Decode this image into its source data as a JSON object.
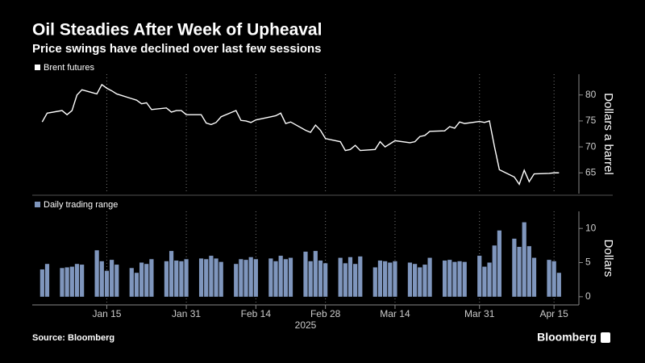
{
  "title": "Oil Steadies After Week of Upheaval",
  "subtitle": "Price swings have declined over last few sessions",
  "source": "Source: Bloomberg",
  "brand": "Bloomberg",
  "chart_data": [
    {
      "type": "line",
      "series": [
        {
          "name": "Brent futures",
          "color": "#ffffff",
          "values": [
            74.8,
            76.5,
            77,
            76.2,
            77,
            80,
            81,
            80.2,
            82,
            81.3,
            80.8,
            80.2,
            79.3,
            79,
            78.3,
            78.5,
            77.2,
            77.5,
            76.7,
            77,
            77,
            76.2,
            76.2,
            74.6,
            74.3,
            74.7,
            75.8,
            77,
            75.1,
            75,
            74.7,
            75.2,
            75.8,
            76,
            76.5,
            74.5,
            74.8,
            73.2,
            72.8,
            74.2,
            73.2,
            71.6,
            71,
            69.3,
            69.5,
            70.3,
            69.3,
            69.5,
            71,
            70,
            70.6,
            71.2,
            70.8,
            71,
            72,
            72.2,
            73,
            73.1,
            73.9,
            73.6,
            74.8,
            74.5,
            74.9,
            74.7,
            75,
            70.1,
            65.6,
            64.2,
            62.8,
            65.5,
            63.3,
            64.8,
            64.9,
            65,
            65
          ]
        }
      ],
      "x": [
        "2025-01-02",
        "2025-01-03",
        "2025-01-06",
        "2025-01-07",
        "2025-01-08",
        "2025-01-09",
        "2025-01-10",
        "2025-01-13",
        "2025-01-14",
        "2025-01-15",
        "2025-01-16",
        "2025-01-17",
        "2025-01-20",
        "2025-01-21",
        "2025-01-22",
        "2025-01-23",
        "2025-01-24",
        "2025-01-27",
        "2025-01-28",
        "2025-01-29",
        "2025-01-30",
        "2025-01-31",
        "2025-02-03",
        "2025-02-04",
        "2025-02-05",
        "2025-02-06",
        "2025-02-07",
        "2025-02-10",
        "2025-02-11",
        "2025-02-12",
        "2025-02-13",
        "2025-02-14",
        "2025-02-17",
        "2025-02-18",
        "2025-02-19",
        "2025-02-20",
        "2025-02-21",
        "2025-02-24",
        "2025-02-25",
        "2025-02-26",
        "2025-02-27",
        "2025-02-28",
        "2025-03-03",
        "2025-03-04",
        "2025-03-05",
        "2025-03-06",
        "2025-03-07",
        "2025-03-10",
        "2025-03-11",
        "2025-03-12",
        "2025-03-13",
        "2025-03-14",
        "2025-03-17",
        "2025-03-18",
        "2025-03-19",
        "2025-03-20",
        "2025-03-21",
        "2025-03-24",
        "2025-03-25",
        "2025-03-26",
        "2025-03-27",
        "2025-03-28",
        "2025-03-31",
        "2025-04-01",
        "2025-04-02",
        "2025-04-03",
        "2025-04-04",
        "2025-04-07",
        "2025-04-08",
        "2025-04-09",
        "2025-04-10",
        "2025-04-11",
        "2025-04-14",
        "2025-04-15",
        "2025-04-16"
      ],
      "xlim": [
        "2024-12-31",
        "2025-04-20"
      ],
      "ylim": [
        61,
        84
      ],
      "yticks": [
        65,
        70,
        75,
        80
      ],
      "ylabel": "Dollars a barrel",
      "xgrid": true
    },
    {
      "type": "bar",
      "series": [
        {
          "name": "Daily trading range",
          "color": "#7f96bd",
          "values": [
            4.0,
            4.8,
            4.2,
            4.3,
            4.4,
            4.8,
            4.7,
            6.8,
            5.2,
            3.8,
            5.4,
            4.7,
            4.2,
            3.5,
            5.0,
            4.8,
            5.5,
            5.2,
            6.7,
            5.3,
            5.2,
            5.5,
            5.6,
            5.5,
            6.0,
            5.6,
            5.1,
            4.8,
            5.5,
            5.4,
            5.8,
            5.5,
            5.6,
            5.2,
            6.0,
            5.5,
            5.7,
            6.6,
            5.2,
            6.7,
            5.3,
            4.9,
            5.7,
            4.9,
            5.8,
            4.8,
            5.9,
            4.3,
            5.3,
            5.2,
            5.0,
            5.2,
            5.0,
            4.8,
            4.3,
            4.7,
            5.7,
            5.3,
            5.4,
            5.1,
            5.2,
            5.1,
            6.0,
            4.4,
            5.0,
            7.5,
            9.7,
            8.5,
            7.3,
            10.9,
            7.4,
            5.7,
            5.4,
            5.2,
            3.5
          ]
        }
      ],
      "x": [
        "2025-01-02",
        "2025-01-03",
        "2025-01-06",
        "2025-01-07",
        "2025-01-08",
        "2025-01-09",
        "2025-01-10",
        "2025-01-13",
        "2025-01-14",
        "2025-01-15",
        "2025-01-16",
        "2025-01-17",
        "2025-01-20",
        "2025-01-21",
        "2025-01-22",
        "2025-01-23",
        "2025-01-24",
        "2025-01-27",
        "2025-01-28",
        "2025-01-29",
        "2025-01-30",
        "2025-01-31",
        "2025-02-03",
        "2025-02-04",
        "2025-02-05",
        "2025-02-06",
        "2025-02-07",
        "2025-02-10",
        "2025-02-11",
        "2025-02-12",
        "2025-02-13",
        "2025-02-14",
        "2025-02-17",
        "2025-02-18",
        "2025-02-19",
        "2025-02-20",
        "2025-02-21",
        "2025-02-24",
        "2025-02-25",
        "2025-02-26",
        "2025-02-27",
        "2025-02-28",
        "2025-03-03",
        "2025-03-04",
        "2025-03-05",
        "2025-03-06",
        "2025-03-07",
        "2025-03-10",
        "2025-03-11",
        "2025-03-12",
        "2025-03-13",
        "2025-03-14",
        "2025-03-17",
        "2025-03-18",
        "2025-03-19",
        "2025-03-20",
        "2025-03-21",
        "2025-03-24",
        "2025-03-25",
        "2025-03-26",
        "2025-03-27",
        "2025-03-28",
        "2025-03-31",
        "2025-04-01",
        "2025-04-02",
        "2025-04-03",
        "2025-04-04",
        "2025-04-07",
        "2025-04-08",
        "2025-04-09",
        "2025-04-10",
        "2025-04-11",
        "2025-04-14",
        "2025-04-15",
        "2025-04-16"
      ],
      "xlim": [
        "2024-12-31",
        "2025-04-20"
      ],
      "xticks": [
        {
          "value": "2025-01-15",
          "label": "Jan 15"
        },
        {
          "value": "2025-01-31",
          "label": "Jan 31"
        },
        {
          "value": "2025-02-14",
          "label": "Feb 14"
        },
        {
          "value": "2025-02-28",
          "label": "Feb 28"
        },
        {
          "value": "2025-03-14",
          "label": "Mar 14"
        },
        {
          "value": "2025-03-31",
          "label": "Mar 31"
        },
        {
          "value": "2025-04-15",
          "label": "Apr 15"
        }
      ],
      "xlabel": "2025",
      "ylim": [
        -1.2,
        12.5
      ],
      "yticks": [
        0,
        5,
        10
      ],
      "ylabel": "Dollars",
      "xgrid": true
    }
  ]
}
